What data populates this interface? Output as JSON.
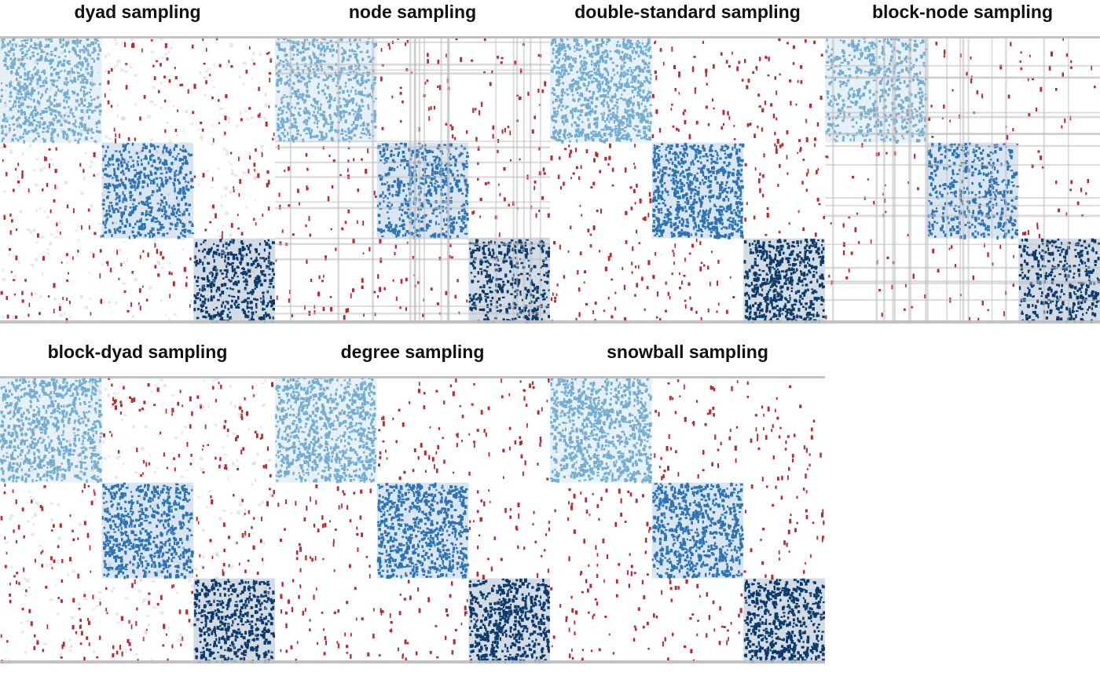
{
  "chart_data": [
    {
      "type": "heatmap",
      "title": "dyad sampling",
      "block_sizes": [
        1,
        0.9,
        0.8
      ],
      "observed_fraction": 0.6,
      "within_density": 0.7,
      "between_density": 0.05,
      "missing_pattern": "dyads"
    },
    {
      "type": "heatmap",
      "title": "node sampling",
      "block_sizes": [
        1,
        0.9,
        0.8
      ],
      "observed_fraction": 0.6,
      "within_density": 0.7,
      "between_density": 0.05,
      "missing_pattern": "nodes"
    },
    {
      "type": "heatmap",
      "title": "double-standard sampling",
      "block_sizes": [
        1,
        0.9,
        0.8
      ],
      "observed_fraction": 0.8,
      "within_density": 0.7,
      "between_density": 0.05,
      "missing_pattern": "none"
    },
    {
      "type": "heatmap",
      "title": "block-node sampling",
      "block_sizes": [
        1,
        0.9,
        0.8
      ],
      "observed_fraction": 0.6,
      "within_density": 0.6,
      "between_density": 0.03,
      "missing_pattern": "nodes"
    },
    {
      "type": "heatmap",
      "title": "block-dyad sampling",
      "block_sizes": [
        1,
        0.9,
        0.8
      ],
      "observed_fraction": 0.7,
      "within_density": 0.7,
      "between_density": 0.05,
      "missing_pattern": "dyads"
    },
    {
      "type": "heatmap",
      "title": "degree sampling",
      "block_sizes": [
        1,
        0.9,
        0.8
      ],
      "observed_fraction": 0.9,
      "within_density": 0.6,
      "between_density": 0.04,
      "missing_pattern": "none"
    },
    {
      "type": "heatmap",
      "title": "snowball sampling",
      "block_sizes": [
        1,
        0.9,
        0.8
      ],
      "observed_fraction": 0.9,
      "within_density": 0.6,
      "between_density": 0.04,
      "missing_pattern": "none"
    }
  ],
  "colors": {
    "block_1": "#74add1",
    "block_2": "#2c73b5",
    "block_3": "#0b3a6b",
    "between_block": "#c0272d",
    "missing": "#bdbdbd",
    "background": "#ffffff"
  }
}
